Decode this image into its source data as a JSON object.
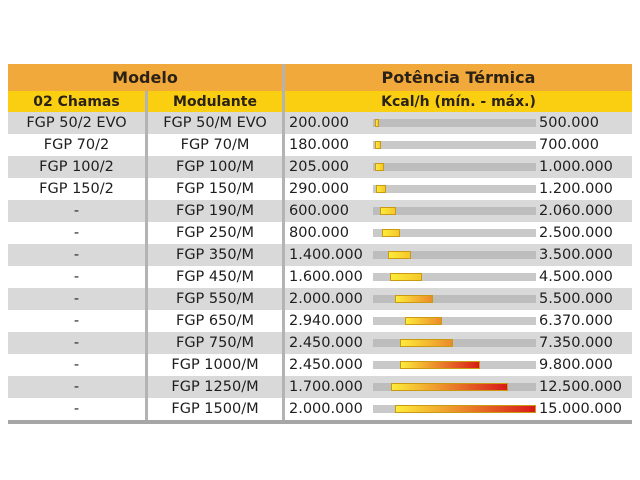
{
  "header": {
    "modelo": "Modelo",
    "potencia": "Potência Térmica",
    "col_chamas": "02 Chamas",
    "col_modulante": "Modulante",
    "col_kcal": "Kcal/h (mín. - máx.)"
  },
  "scale_max": 15000000,
  "colors": {
    "header_orange": "#f2a93b",
    "header_yellow": "#fbcf11",
    "row_gray": "#d9d9d9",
    "bar_start": "#fdeb3a",
    "bar_end": "#d81a1a"
  },
  "rows": [
    {
      "chamas": "FGP 50/2 EVO",
      "modulante": "FGP 50/M EVO",
      "min_label": "200.000",
      "max_label": "500.000",
      "min": 200000,
      "max": 500000
    },
    {
      "chamas": "FGP 70/2",
      "modulante": "FGP 70/M",
      "min_label": "180.000",
      "max_label": "700.000",
      "min": 180000,
      "max": 700000
    },
    {
      "chamas": "FGP 100/2",
      "modulante": "FGP 100/M",
      "min_label": "205.000",
      "max_label": "1.000.000",
      "min": 205000,
      "max": 1000000
    },
    {
      "chamas": "FGP 150/2",
      "modulante": "FGP 150/M",
      "min_label": "290.000",
      "max_label": "1.200.000",
      "min": 290000,
      "max": 1200000
    },
    {
      "chamas": "-",
      "modulante": "FGP 190/M",
      "min_label": "600.000",
      "max_label": "2.060.000",
      "min": 600000,
      "max": 2060000
    },
    {
      "chamas": "-",
      "modulante": "FGP 250/M",
      "min_label": "800.000",
      "max_label": "2.500.000",
      "min": 800000,
      "max": 2500000
    },
    {
      "chamas": "-",
      "modulante": "FGP 350/M",
      "min_label": "1.400.000",
      "max_label": "3.500.000",
      "min": 1400000,
      "max": 3500000
    },
    {
      "chamas": "-",
      "modulante": "FGP 450/M",
      "min_label": "1.600.000",
      "max_label": "4.500.000",
      "min": 1600000,
      "max": 4500000
    },
    {
      "chamas": "-",
      "modulante": "FGP 550/M",
      "min_label": "2.000.000",
      "max_label": "5.500.000",
      "min": 2000000,
      "max": 5500000
    },
    {
      "chamas": "-",
      "modulante": "FGP 650/M",
      "min_label": "2.940.000",
      "max_label": "6.370.000",
      "min": 2940000,
      "max": 6370000
    },
    {
      "chamas": "-",
      "modulante": "FGP 750/M",
      "min_label": "2.450.000",
      "max_label": "7.350.000",
      "min": 2450000,
      "max": 7350000
    },
    {
      "chamas": "-",
      "modulante": "FGP 1000/M",
      "min_label": "2.450.000",
      "max_label": "9.800.000",
      "min": 2450000,
      "max": 9800000
    },
    {
      "chamas": "-",
      "modulante": "FGP 1250/M",
      "min_label": "1.700.000",
      "max_label": "12.500.000",
      "min": 1700000,
      "max": 12500000
    },
    {
      "chamas": "-",
      "modulante": "FGP 1500/M",
      "min_label": "2.000.000",
      "max_label": "15.000.000",
      "min": 2000000,
      "max": 15000000
    }
  ]
}
